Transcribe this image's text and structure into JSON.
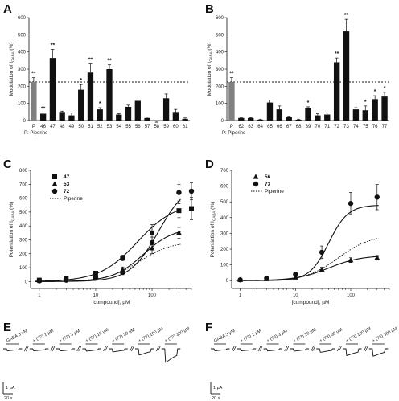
{
  "chart_data": [
    {
      "panel": "A",
      "type": "bar",
      "ylabel": "Modulation of I_GABA (%)",
      "ylim": [
        0,
        600
      ],
      "yticks": [
        0,
        100,
        200,
        300,
        400,
        500,
        600
      ],
      "reference_line": 225,
      "footnote": "P: Piperine",
      "categories": [
        "P",
        "46",
        "47",
        "48",
        "49",
        "50",
        "51",
        "52",
        "53",
        "54",
        "55",
        "56",
        "57",
        "58",
        "59",
        "60",
        "61"
      ],
      "values": [
        225,
        40,
        365,
        50,
        30,
        180,
        280,
        65,
        300,
        35,
        80,
        115,
        15,
        -5,
        130,
        50,
        10
      ],
      "errors": [
        25,
        5,
        50,
        5,
        15,
        30,
        50,
        10,
        25,
        5,
        10,
        5,
        5,
        5,
        25,
        15,
        5
      ],
      "stars": [
        "**",
        "**",
        "**",
        "",
        "",
        "*",
        "**",
        "*",
        "**",
        "",
        "",
        "",
        "",
        "",
        "",
        "",
        ""
      ]
    },
    {
      "panel": "B",
      "type": "bar",
      "ylabel": "Modulation of I_GABA (%)",
      "ylim": [
        0,
        600
      ],
      "yticks": [
        0,
        100,
        200,
        300,
        400,
        500,
        600
      ],
      "reference_line": 225,
      "footnote": "P: Piperine",
      "categories": [
        "P",
        "62",
        "63",
        "64",
        "65",
        "66",
        "67",
        "68",
        "69",
        "70",
        "71",
        "72",
        "73",
        "74",
        "75",
        "76",
        "77"
      ],
      "values": [
        225,
        15,
        15,
        5,
        105,
        65,
        20,
        5,
        75,
        30,
        35,
        340,
        520,
        65,
        60,
        125,
        140
      ],
      "errors": [
        25,
        3,
        3,
        3,
        15,
        20,
        5,
        3,
        5,
        10,
        10,
        25,
        70,
        10,
        25,
        20,
        25
      ],
      "stars": [
        "**",
        "",
        "",
        "",
        "",
        "",
        "",
        "",
        "*",
        "",
        "",
        "**",
        "**",
        "",
        "*",
        "*",
        "*"
      ]
    },
    {
      "panel": "C",
      "type": "scatter",
      "xlabel": "[compound], µM",
      "ylabel": "Potentiation of I_GABA (%)",
      "xscale": "log",
      "xlim": [
        0.7,
        500
      ],
      "xticks": [
        1,
        10,
        100
      ],
      "ylim": [
        -50,
        800
      ],
      "yticks": [
        0,
        100,
        200,
        300,
        400,
        500,
        600,
        700,
        800
      ],
      "legend": "top-left",
      "series": [
        {
          "name": "47",
          "marker": "square",
          "x": [
            1,
            3,
            10,
            30,
            100,
            300,
            500
          ],
          "y": [
            10,
            25,
            60,
            170,
            350,
            510,
            525
          ],
          "err": [
            10,
            10,
            15,
            20,
            60,
            50,
            80
          ],
          "fit": {
            "emax": 570,
            "ec50": 55,
            "n": 1.3
          }
        },
        {
          "name": "53",
          "marker": "triangle",
          "x": [
            1,
            3,
            10,
            30,
            100,
            300
          ],
          "y": [
            10,
            15,
            30,
            85,
            240,
            350
          ],
          "err": [
            10,
            10,
            10,
            20,
            40,
            40
          ],
          "fit": {
            "emax": 390,
            "ec50": 70,
            "n": 1.6
          }
        },
        {
          "name": "72",
          "marker": "circle",
          "x": [
            1,
            3,
            10,
            30,
            100,
            300,
            500
          ],
          "y": [
            5,
            10,
            30,
            65,
            280,
            640,
            650
          ],
          "err": [
            10,
            10,
            10,
            15,
            40,
            60,
            60
          ],
          "fit": {
            "emax": 720,
            "ec50": 130,
            "n": 1.7
          }
        },
        {
          "name": "Piperine",
          "marker": "none",
          "dashed": true,
          "fit": {
            "emax": 290,
            "ec50": 60,
            "n": 1.5
          }
        }
      ]
    },
    {
      "panel": "D",
      "type": "scatter",
      "xlabel": "[compound], µM",
      "ylabel": "Potentiation of I_GABA (%)",
      "xscale": "log",
      "xlim": [
        0.7,
        500
      ],
      "xticks": [
        1,
        10,
        100
      ],
      "ylim": [
        -50,
        700
      ],
      "yticks": [
        0,
        100,
        200,
        300,
        400,
        500,
        600,
        700
      ],
      "legend": "top-left",
      "series": [
        {
          "name": "56",
          "marker": "triangle",
          "x": [
            1,
            3,
            10,
            30,
            100,
            300
          ],
          "y": [
            5,
            10,
            20,
            70,
            130,
            145
          ],
          "err": [
            10,
            10,
            10,
            15,
            15,
            15
          ],
          "fit": {
            "emax": 160,
            "ec50": 40,
            "n": 1.5
          }
        },
        {
          "name": "73",
          "marker": "circle",
          "x": [
            1,
            3,
            10,
            30,
            100,
            300
          ],
          "y": [
            5,
            15,
            40,
            180,
            490,
            530
          ],
          "err": [
            10,
            10,
            15,
            40,
            70,
            80
          ],
          "fit": {
            "emax": 480,
            "ec50": 40,
            "n": 2.5
          }
        },
        {
          "name": "Piperine",
          "marker": "none",
          "dashed": true,
          "fit": {
            "emax": 290,
            "ec50": 60,
            "n": 1.5
          }
        }
      ]
    }
  ],
  "traces": {
    "E": {
      "labels": [
        "GABA 3 µM",
        "+ (72) 1 µM",
        "+ (72) 3 µM",
        "+ (72) 10 µM",
        "+ (72) 30 µM",
        "+ (72) 100 µM",
        "+ (72) 300 µM"
      ],
      "relative_amplitudes": [
        1,
        1.05,
        1.1,
        1.2,
        1.6,
        3.2,
        7.0
      ],
      "scale_current": "1 µA",
      "scale_time": "20 s"
    },
    "F": {
      "labels": [
        "GABA 3 µM",
        "+ (73) 1 µM",
        "+ (73) 3 µM",
        "+ (73) 10 µM",
        "+ (73) 30 µM",
        "+ (73) 100 µM",
        "+ (73) 300 µM"
      ],
      "relative_amplitudes": [
        1,
        1.05,
        1.1,
        1.2,
        1.8,
        3.5,
        3.8
      ],
      "scale_current": "1 µA",
      "scale_time": "20 s"
    }
  }
}
